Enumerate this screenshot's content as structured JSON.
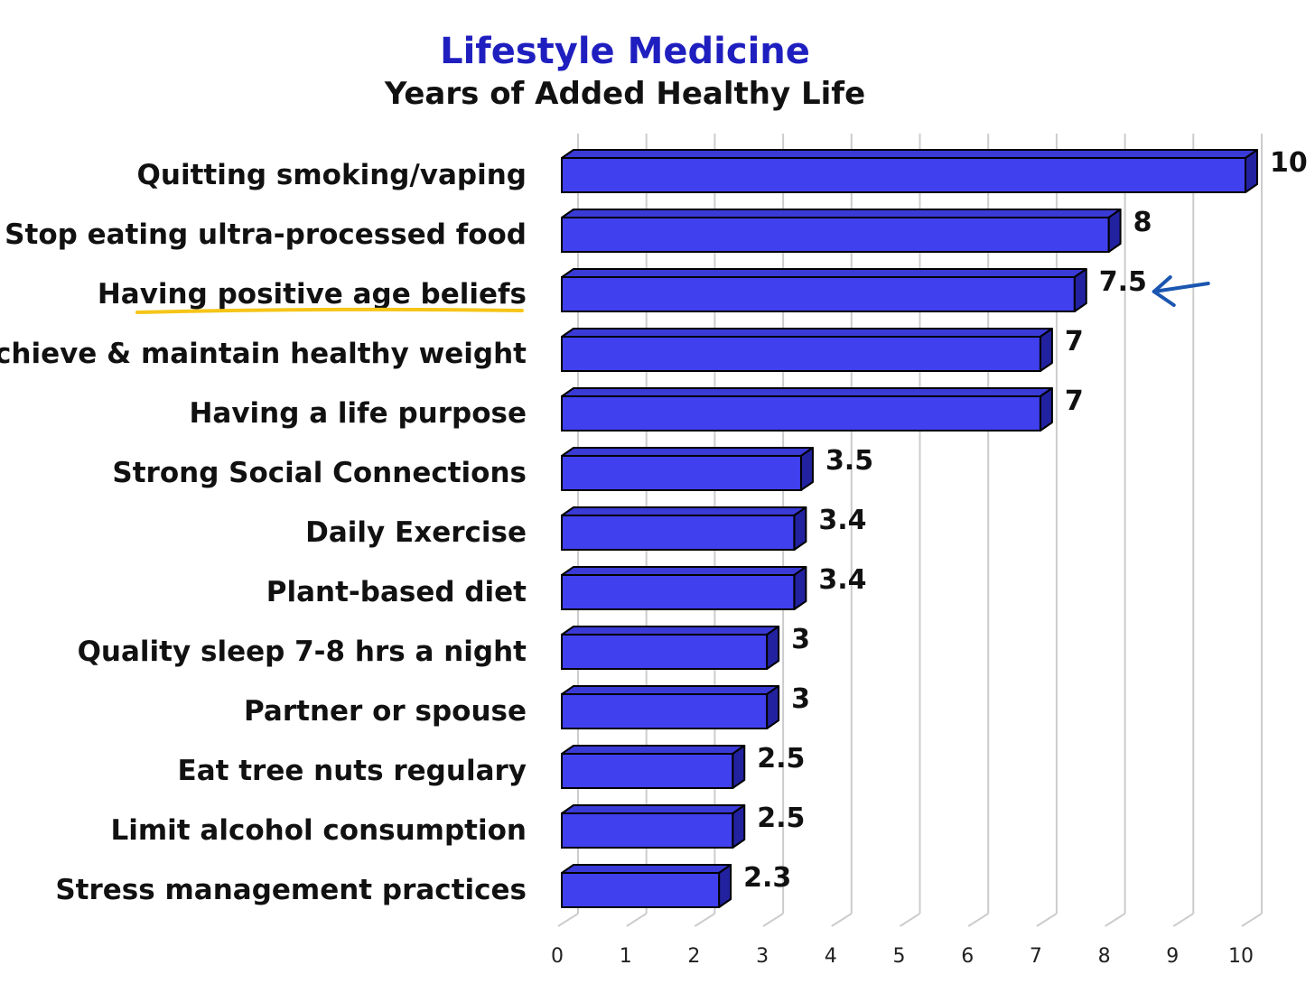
{
  "chart_data": {
    "type": "bar",
    "orientation": "horizontal",
    "style": "3d",
    "title": "Lifestyle Medicine",
    "subtitle": "Years of Added Healthy Life",
    "categories": [
      "Quitting smoking/vaping",
      "Stop eating ultra-processed food",
      "Having positive age beliefs",
      "Achieve & maintain healthy weight",
      "Having a life purpose",
      "Strong Social Connections",
      "Daily Exercise",
      "Plant-based diet",
      "Quality sleep 7-8 hrs a night",
      "Partner or spouse",
      "Eat tree nuts regulary",
      "Limit alcohol consumption",
      "Stress management practices"
    ],
    "values": [
      10,
      8,
      7.5,
      7,
      7,
      3.5,
      3.4,
      3.4,
      3,
      3,
      2.5,
      2.5,
      2.3
    ],
    "value_labels": [
      "10",
      "8",
      "7.5",
      "7",
      "7",
      "3.5",
      "3.4",
      "3.4",
      "3",
      "3",
      "2.5",
      "2.5",
      "2.3"
    ],
    "xlim": [
      0,
      10
    ],
    "xticks": [
      "0",
      "1",
      "2",
      "3",
      "4",
      "5",
      "6",
      "7",
      "8",
      "9",
      "10"
    ],
    "grid": true,
    "legend": "none",
    "highlighted_category": "Having positive age beliefs",
    "colors": {
      "bar_front": "#4040ee",
      "bar_top": "#3a3ad6",
      "bar_side": "#2222a0",
      "title": "#1f1fc0",
      "subtitle": "#111111",
      "highlight_underline": "#f5c518",
      "arrow": "#1a56b0",
      "grid": "#cccccc"
    }
  }
}
